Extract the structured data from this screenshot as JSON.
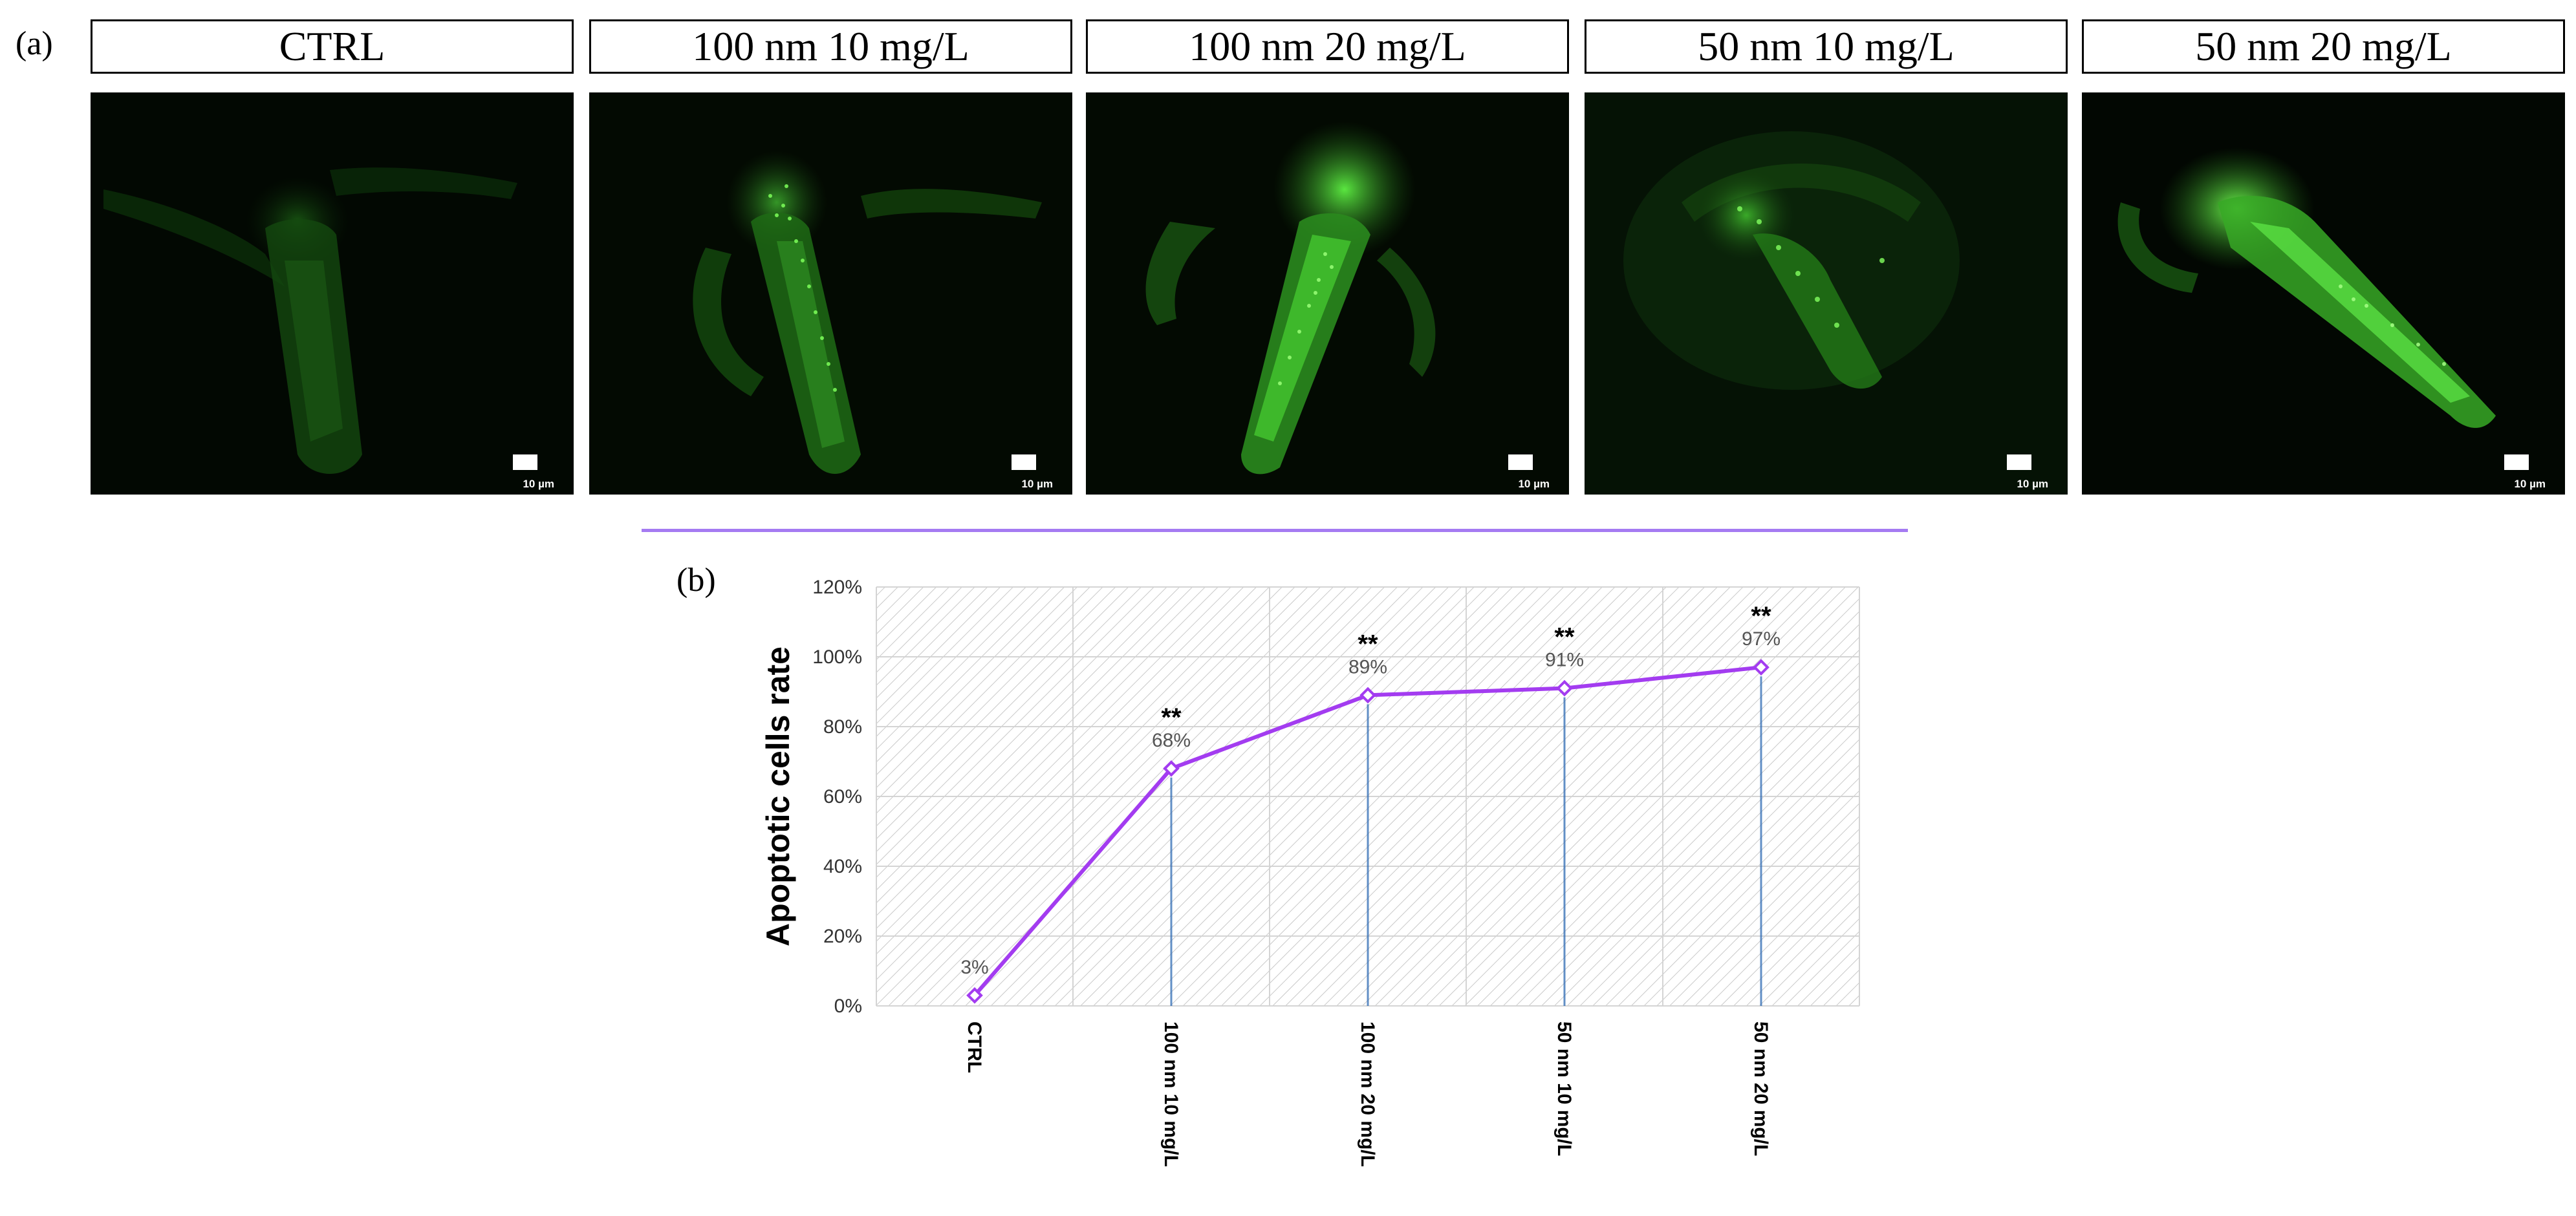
{
  "panels": {
    "a": "(a)",
    "b": "(b)"
  },
  "groups": [
    {
      "label": "CTRL"
    },
    {
      "label": "100 nm 10 mg/L"
    },
    {
      "label": "100 nm 20 mg/L"
    },
    {
      "label": "50 nm 10 mg/L"
    },
    {
      "label": "50 nm 20 mg/L"
    }
  ],
  "scale_bar_label": "10 µm",
  "chart_data": {
    "type": "line",
    "categories": [
      "CTRL",
      "100 nm 10 mg/L",
      "100 nm 20 mg/L",
      "50 nm 10 mg/L",
      "50 nm 20 mg/L"
    ],
    "values": [
      3,
      68,
      89,
      91,
      97
    ],
    "data_labels": [
      "3%",
      "68%",
      "89%",
      "91%",
      "97%"
    ],
    "significance": [
      "",
      "**",
      "**",
      "**",
      "**"
    ],
    "ylabel": "Apoptotic cells rate",
    "ylim": [
      0,
      120
    ],
    "yticks": [
      "0%",
      "20%",
      "40%",
      "60%",
      "80%",
      "100%",
      "120%"
    ],
    "grid": true,
    "colors": {
      "line": "#a33cf0",
      "marker_fill": "#ffffff",
      "drop_line": "#2e6ab3"
    }
  },
  "colors": {
    "fluorescence": "#3bd42b",
    "divider": "#a57bf2"
  }
}
